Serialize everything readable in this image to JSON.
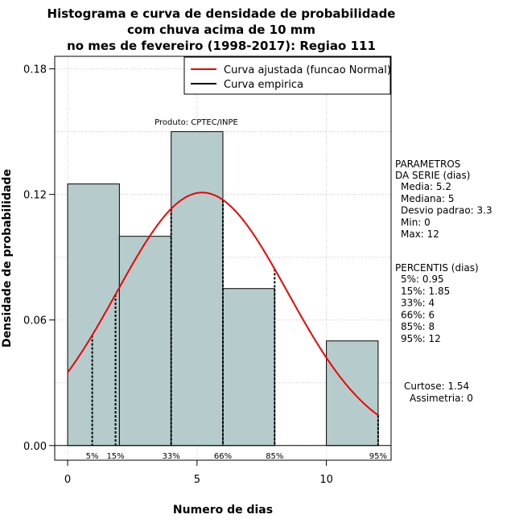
{
  "chart_data": {
    "type": "bar",
    "title_lines": [
      "Histograma e curva de densidade de probabilidade",
      "com chuva acima de 10 mm",
      "no mes de fevereiro (1998-2017): Regiao 111"
    ],
    "xlabel": "Numero de dias",
    "ylabel": "Densidade de probabilidade",
    "xlim": [
      -0.5,
      12.5
    ],
    "ylim": [
      -0.007,
      0.186
    ],
    "x_ticks": [
      0,
      5,
      10
    ],
    "y_ticks": [
      0.0,
      0.06,
      0.12,
      0.18
    ],
    "y_tick_labels": [
      "0.00",
      "0.06",
      "0.12",
      "0.18"
    ],
    "grid": true,
    "bins": [
      {
        "x0": 0,
        "x1": 2,
        "density": 0.125
      },
      {
        "x0": 2,
        "x1": 4,
        "density": 0.1
      },
      {
        "x0": 4,
        "x1": 6,
        "density": 0.15
      },
      {
        "x0": 6,
        "x1": 8,
        "density": 0.075
      },
      {
        "x0": 8,
        "x1": 10,
        "density": 0
      },
      {
        "x0": 10,
        "x1": 12,
        "density": 0.05
      }
    ],
    "bar_color": "#b6cccc",
    "fitted_curve": {
      "name": "Curva ajustada (funcao Normal)",
      "mean": 5.2,
      "sd": 3.3,
      "color": "#ee0000"
    },
    "empirical_curve": {
      "name": "Curva empirica",
      "color": "#000000"
    },
    "legend_position": "top-right",
    "product_label": "Produto: CPTEC/INPE",
    "percentile_marks": [
      {
        "label": "5%",
        "x": 0.95
      },
      {
        "label": "15%",
        "x": 1.85
      },
      {
        "label": "33%",
        "x": 4
      },
      {
        "label": "66%",
        "x": 6
      },
      {
        "label": "85%",
        "x": 8
      },
      {
        "label": "95%",
        "x": 12
      }
    ],
    "parametros": {
      "heading": [
        "PARAMETROS",
        "DA SERIE (dias)"
      ],
      "lines": [
        "Media: 5.2",
        "Mediana: 5",
        "Desvio padrao: 3.3",
        "Min: 0",
        "Max: 12"
      ]
    },
    "percentis": {
      "heading": "PERCENTIS (dias)",
      "lines": [
        "5%: 0.95",
        "15%: 1.85",
        "33%: 4",
        "66%: 6",
        "85%: 8",
        "95%: 12"
      ]
    },
    "shape": {
      "lines": [
        "Curtose: 1.54",
        "Assimetria: 0"
      ]
    }
  }
}
